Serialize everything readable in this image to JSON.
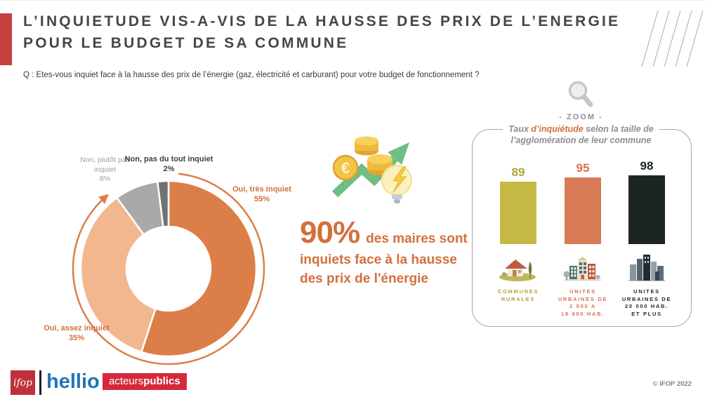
{
  "header": {
    "title_line1": "L’INQUIETUDE VIS-A-VIS DE LA HAUSSE DES PRIX DE L’ENERGIE",
    "title_line2": "POUR LE BUDGET DE SA COMMUNE",
    "question": "Q : Etes-vous inquiet face à la hausse des prix de l’énergie (gaz, électricité et carburant) pour votre budget de fonctionnement ?",
    "accent_color": "#c5403f",
    "title_color": "#42474b"
  },
  "key_stat": {
    "value": "90%",
    "line1": "des maires sont",
    "line2": "inquiets face à la hausse",
    "line3": "des prix de l'énergie",
    "color": "#d2703c"
  },
  "zoom_panel": {
    "zoom_label": "- ZOOM -",
    "subtitle_prefix": "Taux ",
    "subtitle_highlight": "d’inquiétude",
    "subtitle_suffix": " selon la taille de",
    "subtitle_line2": "l’agglomération de leur commune",
    "highlight_color": "#d2703c"
  },
  "chart_data": [
    {
      "type": "pie",
      "subtype": "donut",
      "labels": [
        "Oui, très inquiet",
        "Oui, assez inquiet",
        "Non, plutôt pas inquiet",
        "Non, pas du tout inquiet"
      ],
      "values": [
        55,
        35,
        8,
        2
      ],
      "unit": "%",
      "colors": [
        "#dc7e48",
        "#f2b78f",
        "#a9a9a9",
        "#707274"
      ],
      "start_angle": "top",
      "direction": "clockwise",
      "highlight_arc": {
        "covers_labels": [
          "Oui, très inquiet",
          "Oui, assez inquiet"
        ],
        "total": 90,
        "color": "#dc7e48"
      },
      "callouts": [
        {
          "lines": [
            "Oui, très inquiet",
            "55%"
          ],
          "color": "#d2703c",
          "weight": 700
        },
        {
          "lines": [
            "Oui, assez inquiet",
            "35%"
          ],
          "color": "#d2703c",
          "weight": 700
        },
        {
          "lines": [
            "Non, plutôt pas",
            "inquiet",
            "8%"
          ],
          "color": "#9f9f9f",
          "weight": 400
        },
        {
          "lines": [
            "Non, pas du tout inquiet",
            "2%"
          ],
          "color": "#3f3f3f",
          "weight": 700
        }
      ]
    },
    {
      "type": "bar",
      "categories": [
        "COMMUNES RURALES",
        "UNITES URBAINES DE 2 000 A 19 000 HAB.",
        "UNITES URBAINES DE 20 000 HAB. ET PLUS"
      ],
      "category_lines": [
        [
          "COMMUNES",
          "RURALES"
        ],
        [
          "UNITES",
          "URBAINES DE",
          "2 000 A",
          "19 000 HAB."
        ],
        [
          "UNITES",
          "URBAINES DE",
          "20 000 HAB.",
          "ET PLUS"
        ]
      ],
      "values": [
        89,
        95,
        98
      ],
      "unit": "%",
      "ylim": [
        0,
        100
      ],
      "colors": [
        "#c6b845",
        "#d87a56",
        "#1b2524"
      ],
      "label_colors": [
        "#b2a237",
        "#d4704f",
        "#1b2524"
      ],
      "icons": [
        "rural-house-icon",
        "town-buildings-icon",
        "city-skyline-icon"
      ]
    }
  ],
  "footer": {
    "ifop_text": "ifop",
    "hellio_text": "hellio",
    "acteurs_text_regular": "acteurs",
    "acteurs_text_bold": "publics",
    "copyright": "© IFOP 2022",
    "ifop_red": "#bf3038",
    "hellio_blue": "#2173b9",
    "acteurs_red": "#d5293b"
  },
  "icons": {
    "euro_symbol": "€"
  }
}
